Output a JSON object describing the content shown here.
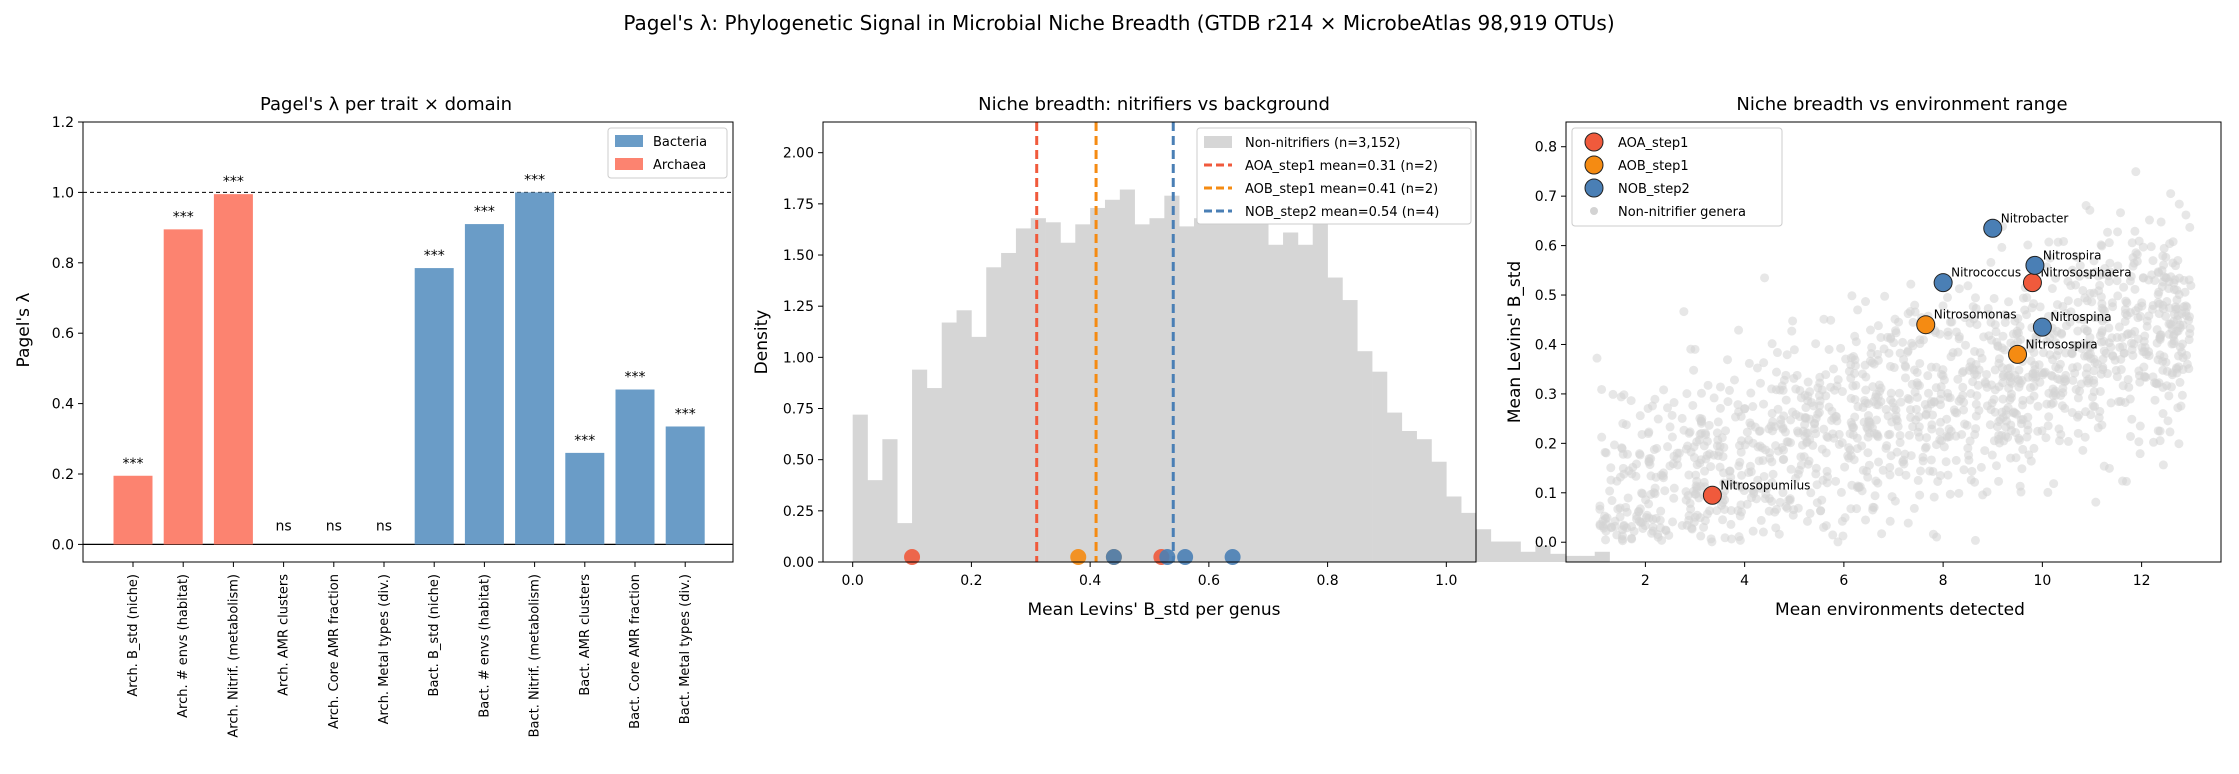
{
  "figure_title": "Pagel's λ: Phylogenetic Signal in Microbial Niche Breadth (GTDB r214 × MicrobeAtlas 98,919 OTUs)",
  "colors": {
    "bacteria": "#6a9cc7",
    "archaea": "#fc8370",
    "hist": "#d6d6d6",
    "aoa": "#f05a3c",
    "aob": "#f58b12",
    "nob": "#4a7fb5",
    "bg_points": "#d3d3d3"
  },
  "chart_data": [
    {
      "type": "bar",
      "title": "Pagel's λ per trait × domain",
      "xlabel": "",
      "ylabel": "Pagel's λ",
      "ylim": [
        -0.05,
        1.2
      ],
      "yticks": [
        "0.0",
        "0.2",
        "0.4",
        "0.6",
        "0.8",
        "1.0",
        "1.2"
      ],
      "reference_line": 1.0,
      "legend": {
        "placement": "top-right",
        "entries": [
          "Bacteria",
          "Archaea"
        ]
      },
      "categories": [
        "Arch. B_std (niche)",
        "Arch. # envs (habitat)",
        "Arch. Nitrif. (metabolism)",
        "Arch. AMR clusters",
        "Arch. Core AMR fraction",
        "Arch. Metal types (div.)",
        "Bact. B_std (niche)",
        "Bact. # envs (habitat)",
        "Bact. Nitrif. (metabolism)",
        "Bact. AMR clusters",
        "Bact. Core AMR fraction",
        "Bact. Metal types (div.)"
      ],
      "domain": [
        "Archaea",
        "Archaea",
        "Archaea",
        "Archaea",
        "Archaea",
        "Archaea",
        "Bacteria",
        "Bacteria",
        "Bacteria",
        "Bacteria",
        "Bacteria",
        "Bacteria"
      ],
      "values": [
        0.195,
        0.895,
        0.995,
        0,
        0,
        0,
        0.785,
        0.91,
        1.0,
        0.26,
        0.44,
        0.335
      ],
      "significance": [
        "***",
        "***",
        "***",
        "ns",
        "ns",
        "ns",
        "***",
        "***",
        "***",
        "***",
        "***",
        "***"
      ]
    },
    {
      "type": "histogram",
      "title": "Niche breadth: nitrifiers vs background",
      "xlabel": "Mean Levins' B_std per genus",
      "ylabel": "Density",
      "xlim": [
        -0.05,
        1.05
      ],
      "ylim": [
        0,
        2.15
      ],
      "xticks": [
        "0.0",
        "0.2",
        "0.4",
        "0.6",
        "0.8",
        "1.0"
      ],
      "yticks": [
        "0.00",
        "0.25",
        "0.50",
        "0.75",
        "1.00",
        "1.25",
        "1.50",
        "1.75",
        "2.00"
      ],
      "bin_width": 0.025,
      "bin_start": 0.0,
      "densities": [
        0.72,
        0.4,
        0.6,
        0.19,
        0.94,
        0.85,
        1.17,
        1.23,
        1.1,
        1.44,
        1.51,
        1.63,
        1.68,
        1.66,
        1.56,
        1.65,
        1.73,
        1.77,
        1.82,
        1.65,
        1.68,
        1.79,
        1.64,
        1.68,
        1.84,
        2.0,
        1.71,
        1.91,
        1.55,
        1.61,
        1.55,
        1.71,
        1.39,
        1.28,
        1.03,
        0.93,
        0.73,
        0.64,
        0.6,
        0.49,
        0.32,
        0.24,
        0.16,
        0.1,
        0.1,
        0.05,
        0.08,
        0.04,
        0.03,
        0.03,
        0.05
      ],
      "legend": {
        "placement": "top-right"
      },
      "background_label": "Non-nitrifiers (n=3,152)",
      "groups": [
        {
          "name": "AOA_step1 mean=0.31 (n=2)",
          "mean": 0.31,
          "color_key": "aoa",
          "points": [
            0.1,
            0.52
          ]
        },
        {
          "name": "AOB_step1 mean=0.41 (n=2)",
          "mean": 0.41,
          "color_key": "aob",
          "points": [
            0.38,
            0.44
          ]
        },
        {
          "name": "NOB_step2 mean=0.54 (n=4)",
          "mean": 0.54,
          "color_key": "nob",
          "points": [
            0.44,
            0.53,
            0.56,
            0.64
          ]
        }
      ]
    },
    {
      "type": "scatter",
      "title": "Niche breadth vs environment range",
      "xlabel": "Mean environments detected",
      "ylabel": "Mean Levins' B_std",
      "xlim": [
        0.4,
        13.6
      ],
      "ylim": [
        -0.04,
        0.85
      ],
      "xticks": [
        "2",
        "4",
        "6",
        "8",
        "10",
        "12"
      ],
      "yticks": [
        "0.0",
        "0.1",
        "0.2",
        "0.3",
        "0.4",
        "0.5",
        "0.6",
        "0.7",
        "0.8"
      ],
      "legend": {
        "placement": "top-left",
        "entries": [
          "AOA_step1",
          "AOB_step1",
          "NOB_step2",
          "Non-nitrifier genera"
        ]
      },
      "labeled_points": [
        {
          "label": "Nitrosopumilus",
          "group": "aoa",
          "x": 3.35,
          "y": 0.095
        },
        {
          "label": "Nitrososphaera",
          "group": "aoa",
          "x": 9.8,
          "y": 0.525
        },
        {
          "label": "Nitrosomonas",
          "group": "aob",
          "x": 7.65,
          "y": 0.44
        },
        {
          "label": "Nitrosospira",
          "group": "aob",
          "x": 9.5,
          "y": 0.38
        },
        {
          "label": "Nitrobacter",
          "group": "nob",
          "x": 9.0,
          "y": 0.635
        },
        {
          "label": "Nitrococcus",
          "group": "nob",
          "x": 8.0,
          "y": 0.525
        },
        {
          "label": "Nitrospira",
          "group": "nob",
          "x": 9.85,
          "y": 0.56
        },
        {
          "label": "Nitrospina",
          "group": "nob",
          "x": 10.0,
          "y": 0.435
        }
      ]
    }
  ]
}
